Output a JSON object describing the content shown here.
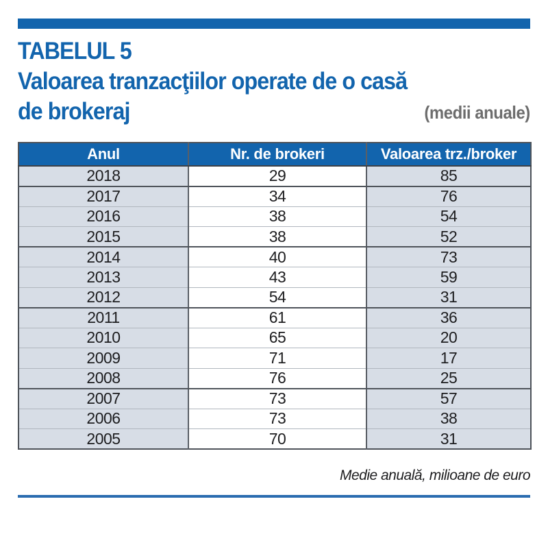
{
  "header": {
    "table_label": "TABELUL 5",
    "title_line1": "Valoarea tranzacţiilor operate de o casă",
    "title_line2": "de brokeraj",
    "subtitle": "(medii anuale)"
  },
  "footer": {
    "note": "Medie anuală, milioane de euro"
  },
  "colors": {
    "accent_blue": "#1264ad",
    "row_shade_blue_gray": "#d7dde6",
    "row_white": "#ffffff",
    "subtitle_gray": "#6d6d6d",
    "border_dark": "#4e535a",
    "border_light": "#b0b6be",
    "text_dark": "#1d1d1f"
  },
  "chart_data": {
    "type": "table",
    "title": "TABELUL 5 — Valoarea tranzacţiilor operate de o casă de brokeraj (medii anuale)",
    "columns": [
      "Anul",
      "Nr. de brokeri",
      "Valoarea trz./broker"
    ],
    "rows": [
      {
        "anul": "2018",
        "nr_de_brokeri": 29,
        "valoarea_trz_broker": 85,
        "group_end": true
      },
      {
        "anul": "2017",
        "nr_de_brokeri": 34,
        "valoarea_trz_broker": 76,
        "group_end": false
      },
      {
        "anul": "2016",
        "nr_de_brokeri": 38,
        "valoarea_trz_broker": 54,
        "group_end": false
      },
      {
        "anul": "2015",
        "nr_de_brokeri": 38,
        "valoarea_trz_broker": 52,
        "group_end": true
      },
      {
        "anul": "2014",
        "nr_de_brokeri": 40,
        "valoarea_trz_broker": 73,
        "group_end": false
      },
      {
        "anul": "2013",
        "nr_de_brokeri": 43,
        "valoarea_trz_broker": 59,
        "group_end": false
      },
      {
        "anul": "2012",
        "nr_de_brokeri": 54,
        "valoarea_trz_broker": 31,
        "group_end": true
      },
      {
        "anul": "2011",
        "nr_de_brokeri": 61,
        "valoarea_trz_broker": 36,
        "group_end": false
      },
      {
        "anul": "2010",
        "nr_de_brokeri": 65,
        "valoarea_trz_broker": 20,
        "group_end": false
      },
      {
        "anul": "2009",
        "nr_de_brokeri": 71,
        "valoarea_trz_broker": 17,
        "group_end": false
      },
      {
        "anul": "2008",
        "nr_de_brokeri": 76,
        "valoarea_trz_broker": 25,
        "group_end": true
      },
      {
        "anul": "2007",
        "nr_de_brokeri": 73,
        "valoarea_trz_broker": 57,
        "group_end": false
      },
      {
        "anul": "2006",
        "nr_de_brokeri": 73,
        "valoarea_trz_broker": 38,
        "group_end": false
      },
      {
        "anul": "2005",
        "nr_de_brokeri": 70,
        "valoarea_trz_broker": 31,
        "group_end": false
      }
    ],
    "footnote": "Medie anuală, milioane de euro"
  }
}
